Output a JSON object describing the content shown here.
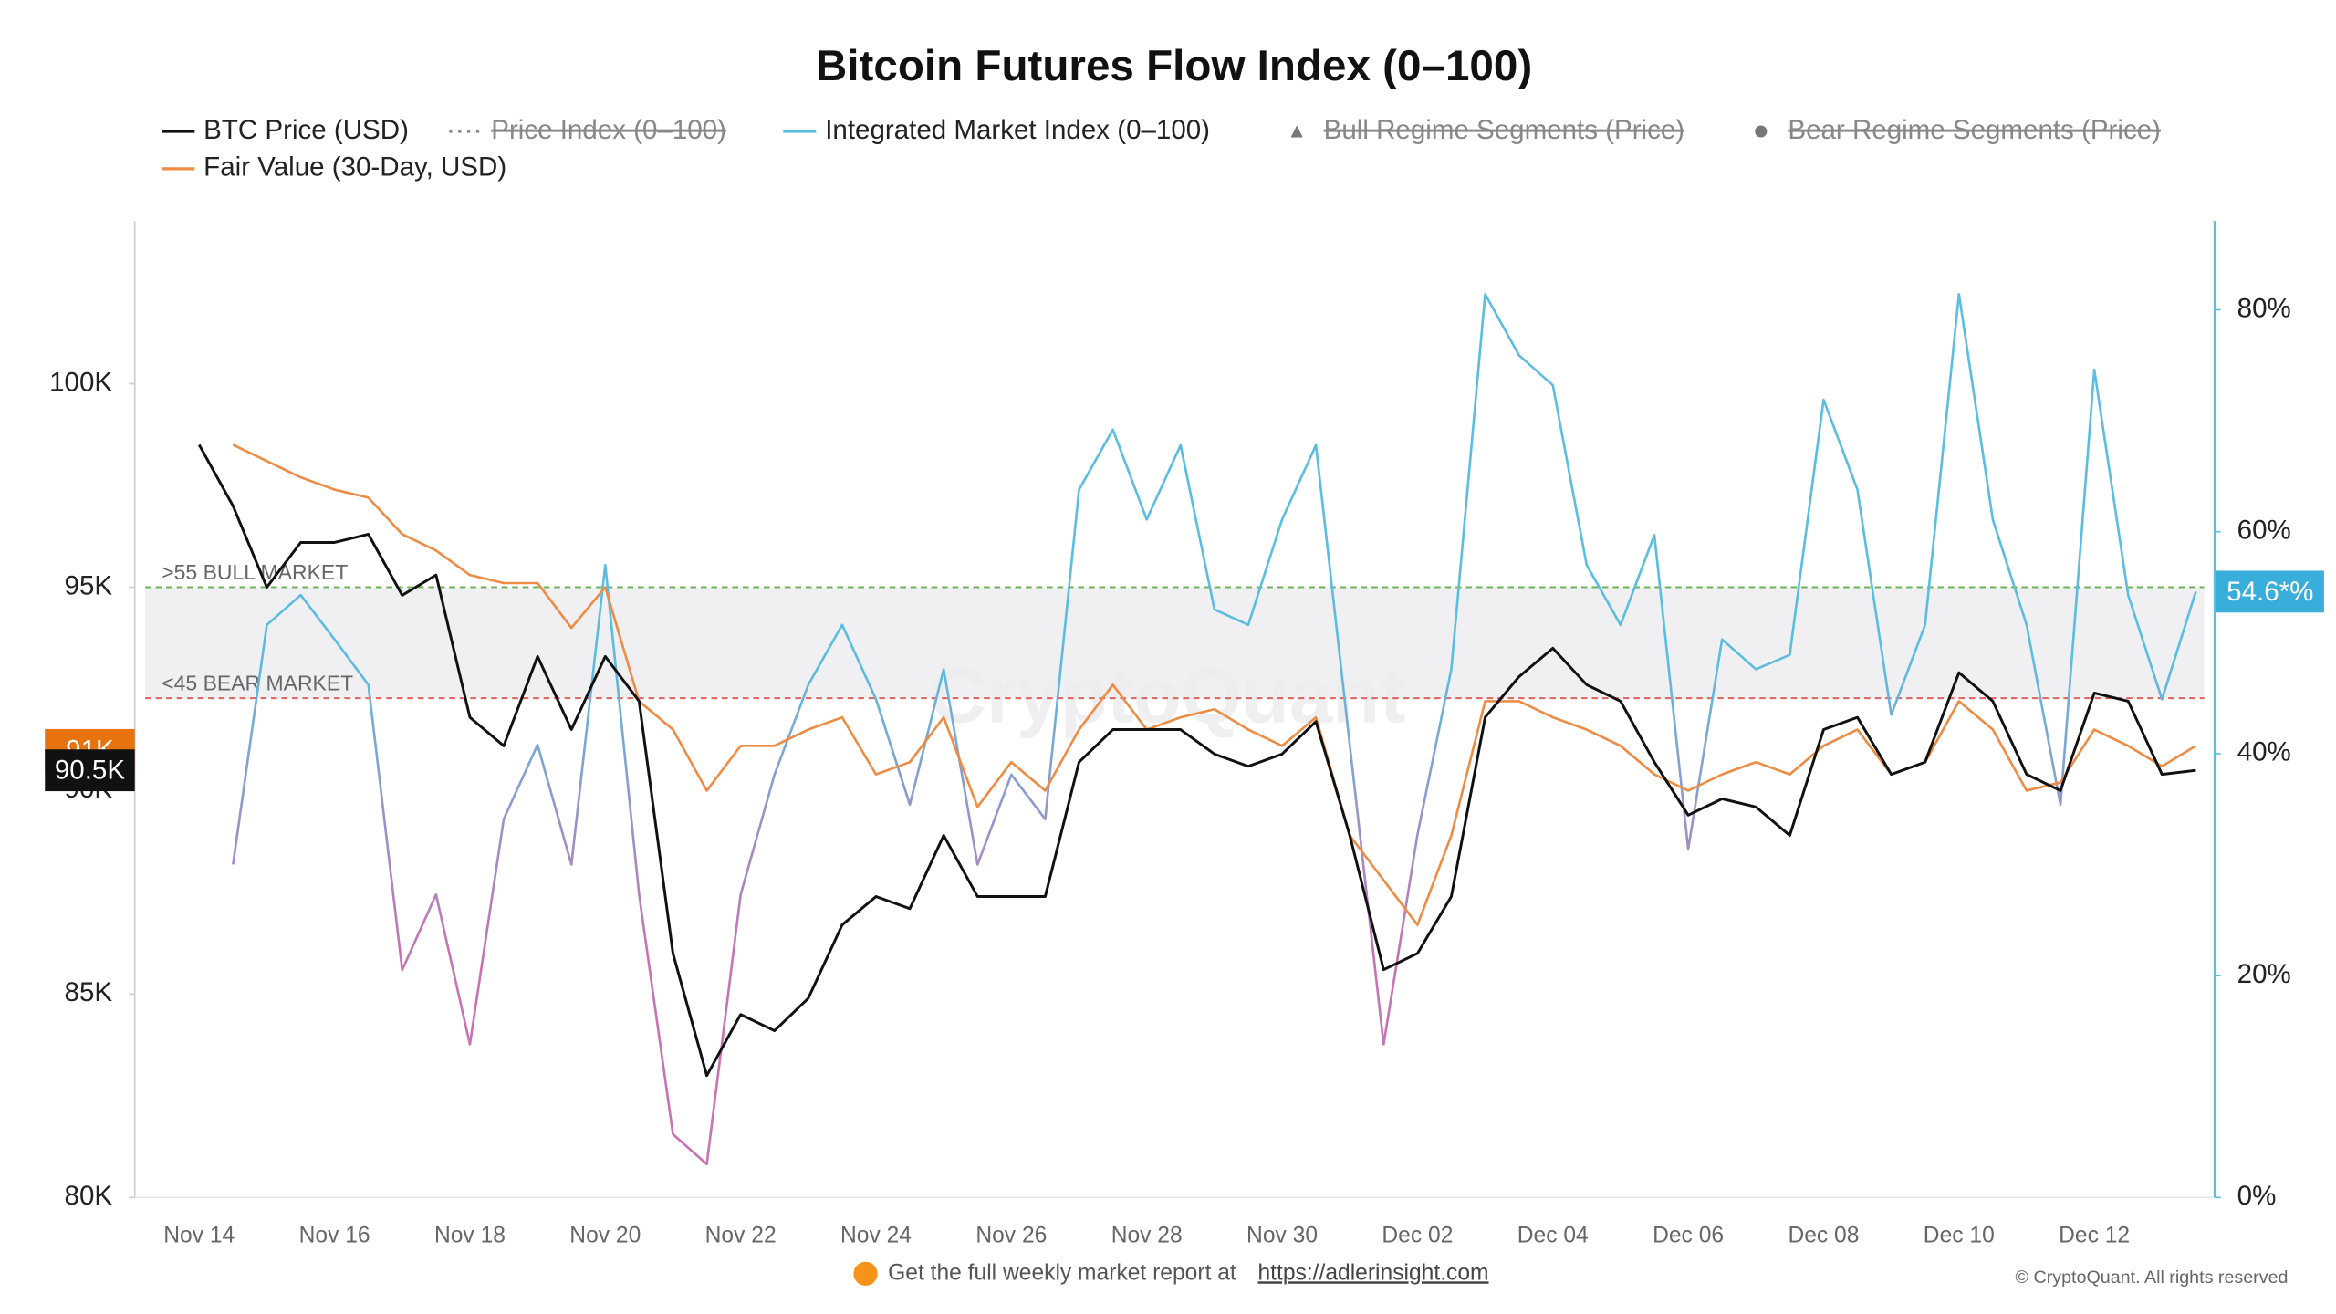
{
  "chart_data": {
    "type": "line",
    "title": "Bitcoin Futures Flow Index (0–100)",
    "categories": [
      "Nov 14",
      null,
      null,
      null,
      "Nov 16",
      null,
      null,
      null,
      "Nov 18",
      null,
      null,
      null,
      "Nov 20",
      null,
      null,
      null,
      "Nov 22",
      null,
      null,
      null,
      "Nov 24",
      null,
      null,
      null,
      "Nov 26",
      null,
      null,
      null,
      "Nov 28",
      null,
      null,
      null,
      "Nov 30",
      null,
      null,
      null,
      "Dec 02",
      null,
      null,
      null,
      "Dec 04",
      null,
      null,
      null,
      "Dec 06",
      null,
      null,
      null,
      "Dec 08",
      null,
      null,
      null,
      "Dec 10",
      null,
      null,
      null,
      "Dec 12",
      null,
      null,
      null
    ],
    "series": [
      {
        "name": "BTC Price (USD)",
        "color": "#111111",
        "values": [
          98500,
          97000,
          95000,
          96100,
          96100,
          96300,
          94800,
          95300,
          91800,
          91100,
          93300,
          91500,
          93300,
          92200,
          86000,
          83000,
          84500,
          84100,
          84900,
          86700,
          87400,
          87100,
          88900,
          87400,
          87400,
          87400,
          90700,
          91500,
          91500,
          91500,
          90900,
          90600,
          90900,
          91700,
          88900,
          85600,
          86000,
          87400,
          91800,
          92800,
          93500,
          92600,
          92200,
          90700,
          89400,
          89800,
          89600,
          88900,
          91500,
          91800,
          90400,
          90700,
          92900,
          92200,
          90400,
          90000,
          92400,
          92200,
          90400,
          90500
        ]
      },
      {
        "name": "Integrated Market Index (0–100)",
        "color": "#5bbde0",
        "low_color": "#c873b4",
        "axis": "y2",
        "values": [
          null,
          30,
          51.6,
          54.3,
          50.3,
          46.2,
          20.5,
          27.3,
          13.8,
          34.1,
          40.8,
          30,
          57,
          27.3,
          5.7,
          3,
          27.3,
          38.1,
          46.2,
          51.6,
          44.9,
          35.4,
          47.6,
          30,
          38.1,
          34.1,
          63.8,
          69.2,
          61.1,
          67.8,
          53,
          51.6,
          61.1,
          67.8,
          40.8,
          13.8,
          32.7,
          47.6,
          81.4,
          75.9,
          73.2,
          57,
          51.6,
          59.7,
          31.4,
          50.3,
          47.6,
          48.9,
          71.9,
          63.8,
          43.5,
          51.6,
          81.4,
          61.1,
          51.6,
          35.4,
          74.6,
          54.3,
          44.9,
          54.6
        ]
      },
      {
        "name": "Fair Value (30-Day, USD)",
        "color": "#ec8c45",
        "values": [
          null,
          98500,
          98100,
          97700,
          97400,
          97200,
          96300,
          95900,
          95300,
          95100,
          95100,
          94000,
          95000,
          92200,
          91500,
          90000,
          91100,
          91100,
          91500,
          91800,
          90400,
          90700,
          91800,
          89600,
          90700,
          90000,
          91500,
          92600,
          91500,
          91800,
          92000,
          91500,
          91100,
          91800,
          88900,
          87800,
          86700,
          88900,
          92200,
          92200,
          91800,
          91500,
          91100,
          90400,
          90000,
          90400,
          90700,
          90400,
          91100,
          91500,
          90400,
          90700,
          92200,
          91500,
          90000,
          90200,
          91500,
          91100,
          90600,
          91100
        ]
      }
    ],
    "hidden_series": [
      {
        "name": "Price Index (0–100)",
        "marker": "dotted"
      },
      {
        "name": "Bull Regime Segments (Price)",
        "marker": "triangle"
      },
      {
        "name": "Bear Regime Segments (Price)",
        "marker": "circle"
      }
    ],
    "ylim": [
      80000,
      104000
    ],
    "yticks": [
      {
        "value": 80000,
        "label": "80K"
      },
      {
        "value": 85000,
        "label": "85K"
      },
      {
        "value": 90000,
        "label": "90K"
      },
      {
        "value": 95000,
        "label": "95K"
      },
      {
        "value": 100000,
        "label": "100K"
      }
    ],
    "y2lim": [
      0,
      88
    ],
    "y2ticks": [
      {
        "value": 0,
        "label": "0%"
      },
      {
        "value": 20,
        "label": "20%"
      },
      {
        "value": 40,
        "label": "40%"
      },
      {
        "value": 60,
        "label": "60%"
      },
      {
        "value": 80,
        "label": "80%"
      }
    ],
    "grid": false,
    "thresholds": [
      {
        "value": 55,
        "label": ">55 BULL MARKET",
        "color": "#6cb35a"
      },
      {
        "value": 45,
        "label": "<45 BEAR MARKET",
        "color": "#e0605a"
      }
    ],
    "last_labels": [
      {
        "value": 91000,
        "label": "91K",
        "color": "#e8730e",
        "axis": "y"
      },
      {
        "value": 90500,
        "label": "90.5K",
        "color": "#111111",
        "axis": "y"
      },
      {
        "value": 54.6,
        "label": "54.6*%",
        "color": "#3aaedb",
        "axis": "y2"
      }
    ],
    "watermark": "CryptoQuant",
    "footer_text": "Get the full weekly market report at",
    "footer_link": "https://adlerinsight.com",
    "copyright": "© CryptoQuant. All rights reserved"
  }
}
